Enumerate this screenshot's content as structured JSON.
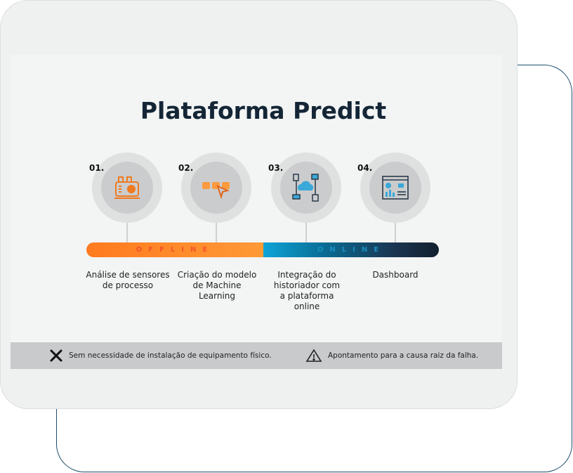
{
  "title": "Plataforma Predict",
  "steps": [
    {
      "num": "01.",
      "icon": "motor-sensor-icon",
      "label": "Análise de sensores de processo"
    },
    {
      "num": "02.",
      "icon": "model-cursor-icon",
      "label": "Criação do modelo de Machine Learning"
    },
    {
      "num": "03.",
      "icon": "cloud-network-icon",
      "label": "Integração do historiador com a plataforma online"
    },
    {
      "num": "04.",
      "icon": "dashboard-icon",
      "label": "Dashboard"
    }
  ],
  "bar": {
    "offline": "OFFLINE",
    "online": "ONLINE"
  },
  "footer": {
    "item1": "Sem necessidade de instalação de equipamento físico.",
    "item2": "Apontamento para a causa raiz da falha."
  },
  "colors": {
    "orange": "#ff8a2a",
    "blue": "#0ea4d8",
    "navy": "#142636",
    "outline": "#1f4e6e"
  }
}
